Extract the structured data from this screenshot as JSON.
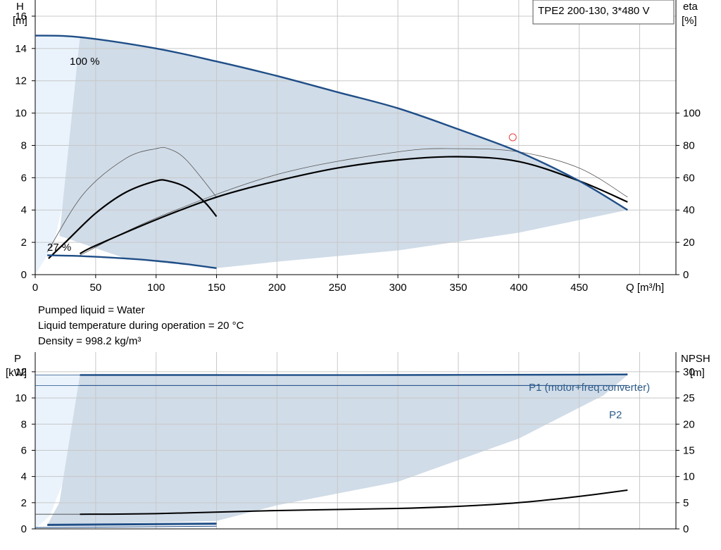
{
  "colors": {
    "area_fill": "#d0dce8",
    "area_light": "#eaf3fc",
    "blue_curve": "#1f4e87",
    "black_curve": "#000000",
    "thin_curve": "#555555",
    "grid": "#c8c8c8",
    "axis": "#000000",
    "marker": "#e84040",
    "p_label": "#2e5c8a"
  },
  "top": {
    "title_box": "TPE2 200-130, 3*480 V",
    "y_left_label": [
      "H",
      "[m]"
    ],
    "y_right_label": [
      "eta",
      "[%]"
    ],
    "x_label": "Q [m³/h]",
    "x_ticks": [
      "0",
      "50",
      "100",
      "150",
      "200",
      "250",
      "300",
      "350",
      "400",
      "450"
    ],
    "y_left_ticks": [
      "0",
      "2",
      "4",
      "6",
      "8",
      "10",
      "12",
      "14",
      "16"
    ],
    "y_right_ticks": [
      "0",
      "20",
      "40",
      "60",
      "80",
      "100"
    ],
    "speed_max_label": "100 %",
    "speed_min_label": "27 %"
  },
  "info": {
    "line1": "Pumped liquid = Water",
    "line2": "Liquid temperature during operation = 20 °C",
    "line3": "Density = 998.2 kg/m³"
  },
  "bottom": {
    "y_left_label": [
      "P",
      "[kW]"
    ],
    "y_right_label": [
      "NPSH",
      "[m]"
    ],
    "y_left_ticks": [
      "0",
      "2",
      "4",
      "6",
      "8",
      "10",
      "12"
    ],
    "y_right_ticks": [
      "0",
      "5",
      "10",
      "15",
      "20",
      "25",
      "30"
    ],
    "p1_label": "P1 (motor+freq.converter)",
    "p2_label": "P2"
  },
  "chart_data": [
    {
      "type": "line",
      "xlim": [
        0,
        530
      ],
      "ylim_left": [
        0,
        17
      ],
      "ylim_right_eta": [
        0,
        100
      ],
      "grid": true,
      "series": [
        {
          "name": "100 %",
          "axis": "H",
          "x": [
            0,
            37,
            100,
            150,
            200,
            250,
            300,
            350,
            400,
            450,
            490
          ],
          "y": [
            14.8,
            14.7,
            14.0,
            13.2,
            12.3,
            11.3,
            10.3,
            9.0,
            7.6,
            5.8,
            4.0
          ]
        },
        {
          "name": "27 %",
          "axis": "H",
          "x": [
            10,
            37,
            75,
            100,
            125,
            150
          ],
          "y": [
            1.2,
            1.15,
            1.0,
            0.85,
            0.65,
            0.4
          ]
        },
        {
          "axis": "eta",
          "x": [
            11,
            25,
            50,
            75,
            100,
            110,
            125,
            140,
            150
          ],
          "y": [
            10,
            20,
            38,
            51,
            58,
            58,
            54,
            45,
            36
          ]
        },
        {
          "axis": "eta",
          "x": [
            37,
            50,
            100,
            150,
            200,
            250,
            300,
            350,
            400,
            450,
            490
          ],
          "y": [
            13,
            18,
            34,
            48,
            58,
            66,
            71,
            73,
            70,
            58,
            45
          ]
        },
        {
          "axis": "eta_thin",
          "x": [
            10,
            40,
            75,
            100,
            110,
            125,
            150
          ],
          "y": [
            14,
            50,
            72,
            78,
            78,
            71,
            48
          ]
        },
        {
          "axis": "eta_thin",
          "x": [
            37,
            100,
            200,
            300,
            350,
            400,
            450,
            490
          ],
          "y": [
            12,
            35,
            62,
            76,
            78,
            76,
            66,
            48
          ]
        }
      ],
      "markers": [
        {
          "x": 395,
          "y": 8.5
        }
      ]
    },
    {
      "type": "line",
      "xlim": [
        0,
        530
      ],
      "ylim_left": [
        0,
        13.5
      ],
      "ylim_right_npsh": [
        0,
        33.75
      ],
      "grid": true,
      "series": [
        {
          "name": "P1 (motor+freq.converter)",
          "axis": "P",
          "x": [
            37,
            150,
            300,
            450,
            490
          ],
          "y": [
            11.75,
            11.75,
            11.75,
            11.78,
            11.8
          ]
        },
        {
          "name": "P2",
          "axis": "P",
          "x": [
            37,
            150,
            300,
            450,
            490
          ],
          "y": [
            10.95,
            10.95,
            10.95,
            10.95,
            10.95
          ]
        },
        {
          "axis": "NPSH",
          "x": [
            37,
            100,
            200,
            300,
            350,
            400,
            450,
            490
          ],
          "y": [
            2.8,
            2.9,
            3.5,
            3.9,
            4.3,
            5.0,
            6.2,
            7.4
          ]
        },
        {
          "axis": "P",
          "x": [
            10,
            150
          ],
          "y": [
            0.3,
            0.4
          ]
        }
      ]
    }
  ]
}
